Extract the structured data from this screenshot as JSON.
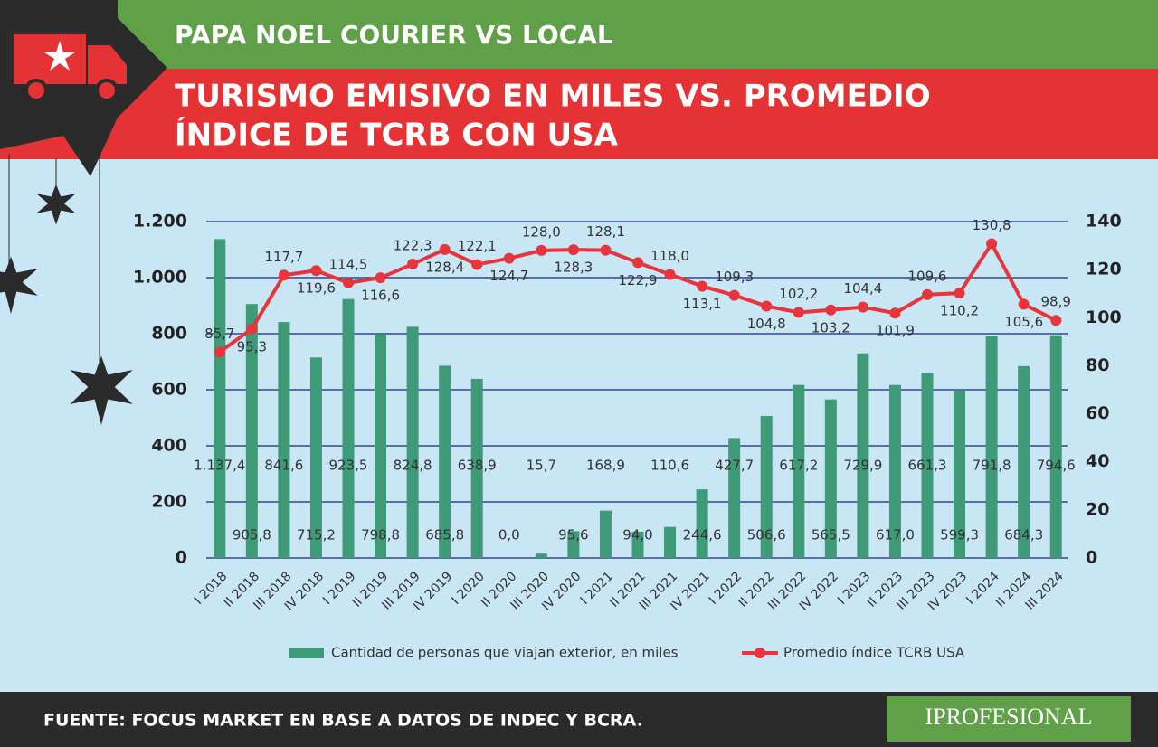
{
  "chart_data": {
    "type": "bar_line",
    "section": "PAPA NOEL COURIER VS LOCAL",
    "title": [
      "TURISMO EMISIVO EN MILES VS. PROMEDIO",
      "ÍNDICE DE TCRB CON USA"
    ],
    "source": "FUENTE: FOCUS MARKET EN BASE A DATOS DE INDEC Y BCRA.",
    "logo": "IPROFESIONAL",
    "categories": [
      "I 2018",
      "II 2018",
      "III 2018",
      "IV 2018",
      "I 2019",
      "II 2019",
      "III 2019",
      "IV 2019",
      "I 2020",
      "II 2020",
      "III 2020",
      "IV 2020",
      "I 2021",
      "II 2021",
      "III 2021",
      "IV 2021",
      "I 2022",
      "II 2022",
      "III 2022",
      "IV 2022",
      "I 2023",
      "II 2023",
      "III 2023",
      "IV 2023",
      "I 2024",
      "II 2024",
      "III 2024"
    ],
    "series": [
      {
        "name": "Cantidad de personas que viajan exterior, en miles",
        "type": "bar",
        "color": "#3f9a78",
        "axis": "y",
        "values": [
          1137.4,
          905.8,
          841.6,
          715.2,
          923.5,
          798.8,
          824.8,
          685.8,
          638.9,
          0.0,
          15.7,
          95.6,
          168.9,
          94.0,
          110.6,
          244.6,
          427.7,
          506.6,
          617.2,
          565.5,
          729.9,
          617.0,
          661.3,
          599.3,
          791.8,
          684.3,
          794.6
        ],
        "value_labels": [
          "1.137,4",
          "905,8",
          "841,6",
          "715,2",
          "923,5",
          "798,8",
          "824,8",
          "685,8",
          "638,9",
          "0,0",
          "15,7",
          "95,6",
          "168,9",
          "94,0",
          "110,6",
          "244,6",
          "427,7",
          "506,6",
          "617,2",
          "565,5",
          "729,9",
          "617,0",
          "661,3",
          "599,3",
          "791,8",
          "684,3",
          "794,6"
        ]
      },
      {
        "name": "Promedio índice TCRB USA",
        "type": "line",
        "color": "#e8343c",
        "axis": "y2",
        "values": [
          85.7,
          95.3,
          117.7,
          119.6,
          114.5,
          116.6,
          122.3,
          128.4,
          122.1,
          124.7,
          128.0,
          128.3,
          128.1,
          122.9,
          118.0,
          113.1,
          109.3,
          104.8,
          102.2,
          103.2,
          104.4,
          101.9,
          109.6,
          110.2,
          130.8,
          105.6,
          98.9
        ],
        "value_labels": [
          "85,7",
          "95,3",
          "117,7",
          "119,6",
          "114,5",
          "116,6",
          "122,3",
          "128,4",
          "122,1",
          "124,7",
          "128,0",
          "128,3",
          "128,1",
          "122,9",
          "118,0",
          "113,1",
          "109,3",
          "104,8",
          "102,2",
          "103,2",
          "104,4",
          "101,9",
          "109,6",
          "110,2",
          "130,8",
          "105,6",
          "98,9"
        ]
      }
    ],
    "ylim": [
      0,
      1200
    ],
    "yticks": [
      0,
      200,
      400,
      600,
      800,
      {
        "value": 1000,
        "label": "1.000"
      },
      {
        "value": 1200,
        "label": "1.200"
      }
    ],
    "y2lim": [
      0,
      140
    ],
    "y2ticks": [
      0,
      20,
      40,
      60,
      80,
      100,
      120,
      140
    ],
    "grid": true
  }
}
